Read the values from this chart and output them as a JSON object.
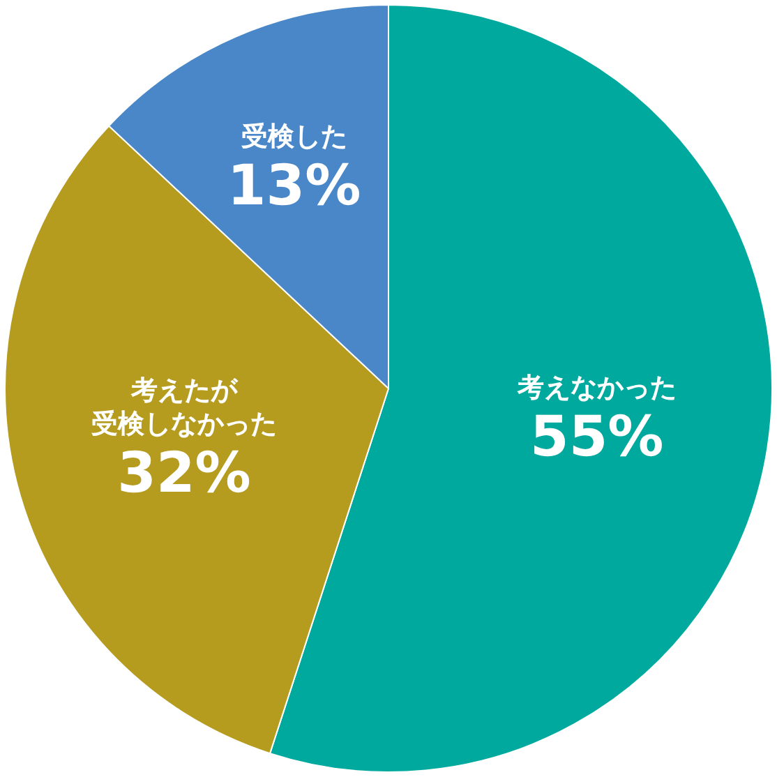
{
  "chart_data": {
    "type": "pie",
    "categories": [
      "考えなかった",
      "考えたが受検しなかった",
      "受検した"
    ],
    "values": [
      55,
      32,
      13
    ],
    "colors": [
      "#00a99d",
      "#b59b1e",
      "#4a87c8"
    ],
    "value_labels": [
      "55%",
      "32%",
      "13%"
    ],
    "legend": false
  }
}
